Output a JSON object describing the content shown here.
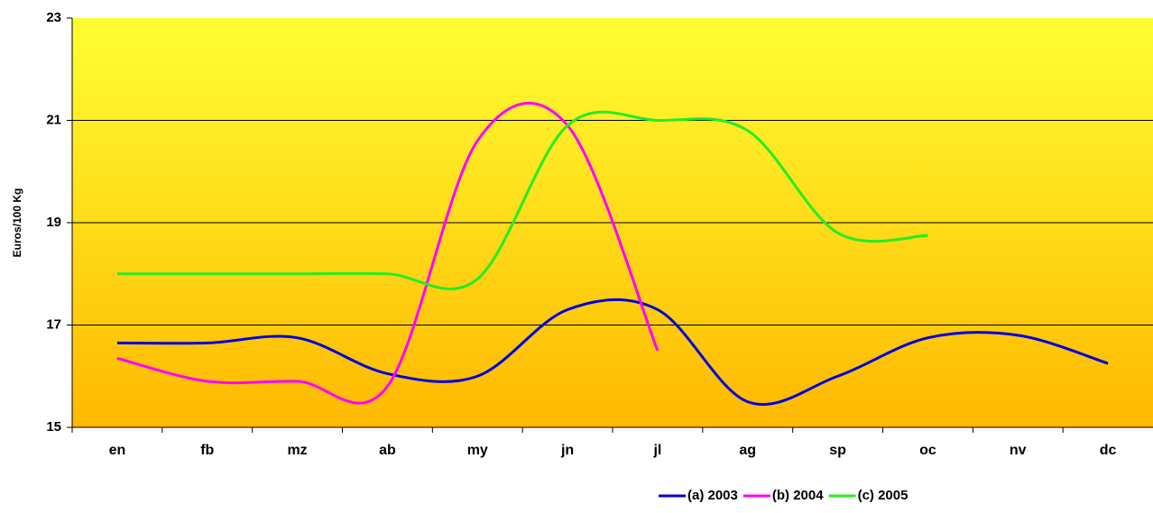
{
  "chart_data": {
    "type": "line",
    "y_label": "Euros/100 Kg",
    "categories": [
      "en",
      "fb",
      "mz",
      "ab",
      "my",
      "jn",
      "jl",
      "ag",
      "sp",
      "oc",
      "nv",
      "dc"
    ],
    "series": [
      {
        "name": "(a) 2003",
        "color": "#0000dd",
        "values": [
          16.65,
          16.65,
          16.75,
          16.05,
          16.0,
          17.3,
          17.3,
          15.5,
          16.0,
          16.75,
          16.8,
          16.25
        ]
      },
      {
        "name": "(b) 2004",
        "color": "#ff00ff",
        "values": [
          16.35,
          15.9,
          15.9,
          15.8,
          20.6,
          20.9,
          16.5,
          null,
          null,
          null,
          null,
          null
        ]
      },
      {
        "name": "(c) 2005",
        "color": "#22ee22",
        "values": [
          18.0,
          18.0,
          18.0,
          18.0,
          17.9,
          20.9,
          21.0,
          20.8,
          18.8,
          18.75,
          null,
          null
        ]
      }
    ],
    "ylim": [
      15,
      23
    ],
    "yticks": [
      15,
      17,
      19,
      21,
      23
    ],
    "grid": true,
    "legend": "bottom"
  }
}
